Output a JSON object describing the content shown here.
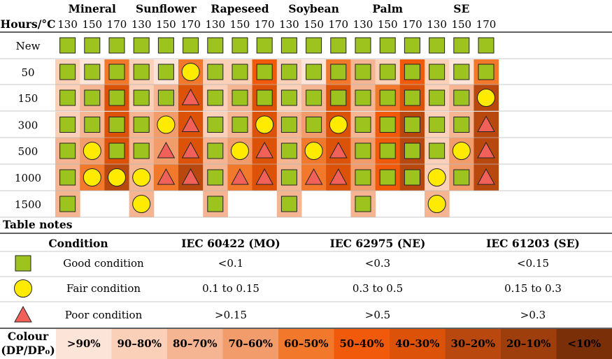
{
  "oils": [
    "Mineral",
    "Sunflower",
    "Rapeseed",
    "Soybean",
    "Palm",
    "SE"
  ],
  "temps": [
    "130",
    "150",
    "170"
  ],
  "header_label": "Hours/°C",
  "row_labels": [
    "New",
    "50",
    "150",
    "300",
    "500",
    "1000",
    "1500"
  ],
  "grid": {
    "symbols": [
      [
        "g",
        "g",
        "g",
        "g",
        "g",
        "g",
        "g",
        "g",
        "g",
        "g",
        "g",
        "g",
        "g",
        "g",
        "g",
        "g",
        "g",
        "g"
      ],
      [
        "g",
        "g",
        "g",
        "g",
        "g",
        "f",
        "g",
        "g",
        "g",
        "g",
        "g",
        "g",
        "g",
        "g",
        "g",
        "g",
        "g",
        "g"
      ],
      [
        "g",
        "g",
        "g",
        "g",
        "g",
        "p",
        "g",
        "g",
        "g",
        "g",
        "g",
        "g",
        "g",
        "g",
        "g",
        "g",
        "g",
        "f"
      ],
      [
        "g",
        "g",
        "g",
        "g",
        "f",
        "p",
        "g",
        "g",
        "f",
        "g",
        "g",
        "f",
        "g",
        "g",
        "g",
        "g",
        "g",
        "p"
      ],
      [
        "g",
        "f",
        "g",
        "g",
        "p",
        "p",
        "g",
        "f",
        "p",
        "g",
        "f",
        "p",
        "g",
        "g",
        "g",
        "g",
        "f",
        "p"
      ],
      [
        "g",
        "f",
        "f",
        "f",
        "p",
        "p",
        "g",
        "p",
        "p",
        "g",
        "p",
        "p",
        "g",
        "g",
        "g",
        "f",
        "g",
        "p"
      ],
      [
        "g",
        "",
        "",
        "f",
        "",
        "",
        "g",
        "",
        "",
        "g",
        "",
        "",
        "g",
        "",
        "",
        "f",
        "",
        ""
      ]
    ],
    "bands": [
      [
        -1,
        -1,
        -1,
        -1,
        -1,
        -1,
        -1,
        -1,
        -1,
        -1,
        -1,
        -1,
        -1,
        -1,
        -1,
        -1,
        -1,
        -1
      ],
      [
        1,
        0,
        4,
        1,
        0,
        4,
        1,
        1,
        5,
        1,
        0,
        4,
        2,
        1,
        5,
        1,
        0,
        4
      ],
      [
        1,
        2,
        6,
        1,
        2,
        6,
        1,
        2,
        6,
        1,
        2,
        6,
        2,
        4,
        6,
        1,
        2,
        7
      ],
      [
        1,
        2,
        6,
        2,
        3,
        6,
        1,
        2,
        6,
        2,
        3,
        6,
        2,
        5,
        7,
        1,
        2,
        7
      ],
      [
        2,
        3,
        6,
        2,
        3,
        6,
        2,
        3,
        6,
        2,
        4,
        6,
        3,
        5,
        7,
        1,
        3,
        7
      ],
      [
        2,
        4,
        7,
        2,
        4,
        7,
        2,
        4,
        6,
        2,
        4,
        6,
        3,
        5,
        7,
        1,
        3,
        7
      ],
      [
        2,
        -1,
        -1,
        2,
        -1,
        -1,
        2,
        -1,
        -1,
        2,
        -1,
        -1,
        2,
        -1,
        -1,
        2,
        -1,
        -1
      ]
    ]
  },
  "notes": {
    "title": "Table notes",
    "condition_header": "Condition",
    "standards": [
      "IEC 60422 (MO)",
      "IEC 62975 (NE)",
      "IEC 61203 (SE)"
    ],
    "rows": [
      {
        "symbol": "g",
        "label": "Good condition",
        "values": [
          "<0.1",
          "<0.3",
          "<0.15"
        ]
      },
      {
        "symbol": "f",
        "label": "Fair condition",
        "values": [
          "0.1 to 0.15",
          "0.3 to 0.5",
          "0.15 to 0.3"
        ]
      },
      {
        "symbol": "p",
        "label": "Poor condition",
        "values": [
          ">0.15",
          ">0.5",
          ">0.3"
        ]
      }
    ]
  },
  "colour_legend": {
    "label_line1": "Colour",
    "label_line2": "(DP/DP₀)",
    "ranges": [
      ">90%",
      "90–80%",
      "80–70%",
      "70–60%",
      "60–50%",
      "50–40%",
      "40–30%",
      "30–20%",
      "20–10%",
      "<10%"
    ],
    "colors": [
      "#fde4d8",
      "#fbd0b8",
      "#f6b592",
      "#f29c6c",
      "#f2782b",
      "#f05a0a",
      "#dd5209",
      "#b9480e",
      "#9e3e0d",
      "#7a2f08"
    ]
  },
  "symbol_colors": {
    "good_fill": "#9dc31e",
    "fair_fill": "#ffeb00",
    "poor_fill": "#f2605a",
    "outline": "#222222"
  }
}
